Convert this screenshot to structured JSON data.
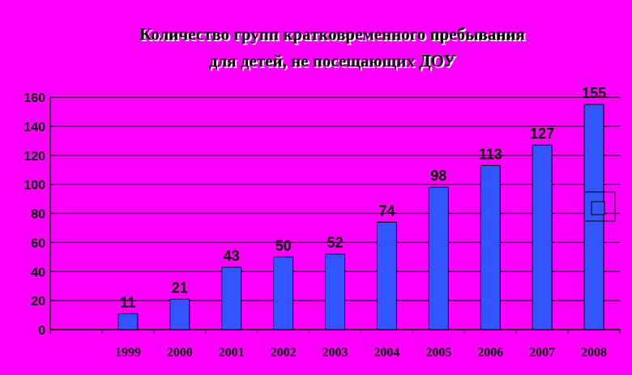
{
  "chart_data": {
    "type": "bar",
    "title_lines": [
      "Количество групп кратковременного пребывания",
      "для детей, не посещающих ДОУ"
    ],
    "categories": [
      "1999",
      "2000",
      "2001",
      "2002",
      "2003",
      "2004",
      "2005",
      "2006",
      "2007",
      "2008"
    ],
    "values": [
      11,
      21,
      43,
      50,
      52,
      74,
      98,
      113,
      127,
      155
    ],
    "ylim": [
      0,
      160
    ],
    "yticks": [
      0,
      20,
      40,
      60,
      80,
      100,
      120,
      140,
      160
    ],
    "grid": true,
    "legend_position": "right",
    "colors": {
      "background": "#ff00ff",
      "bar_fill": "#3355ff",
      "bar_stroke": "#000000",
      "gridline": "#000000"
    }
  }
}
